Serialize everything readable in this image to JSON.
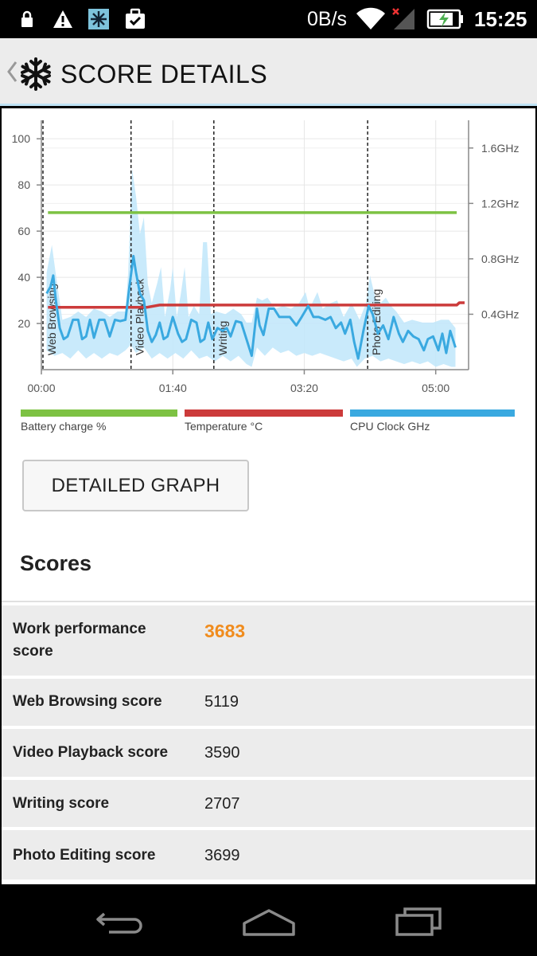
{
  "status_bar": {
    "net_speed": "0B/s",
    "time": "15:25",
    "icons": [
      "lock-icon",
      "warning-icon",
      "snowflake-app-icon",
      "briefcase-check-icon",
      "wifi-icon",
      "signal-icon",
      "battery-charging-icon"
    ]
  },
  "header": {
    "title": "SCORE DETAILS",
    "icons": [
      "back-chevron-icon",
      "snowflake-logo-icon"
    ]
  },
  "chart_data": {
    "type": "line",
    "x_ticks": [
      "00:00",
      "01:40",
      "03:20",
      "05:00"
    ],
    "x_range_seconds": [
      0,
      325
    ],
    "y_left_ticks": [
      20,
      40,
      60,
      80,
      100
    ],
    "y_left_range": [
      0,
      108
    ],
    "y_right_ticks": [
      "0.4GHz",
      "0.8GHz",
      "1.2GHz",
      "1.6GHz"
    ],
    "y_right_range_ghz": [
      0,
      1.8
    ],
    "grid": true,
    "section_markers": [
      {
        "label": "Web Browsing",
        "t": 0
      },
      {
        "label": "Video Playback",
        "t": 67
      },
      {
        "label": "Writing",
        "t": 130
      },
      {
        "label": "Photo Editing",
        "t": 247
      }
    ],
    "series": [
      {
        "name": "Battery charge %",
        "color": "#7dc243",
        "axis": "left",
        "points": [
          [
            5,
            68
          ],
          [
            316,
            68
          ]
        ]
      },
      {
        "name": "Temperature °C",
        "color": "#cc3b3b",
        "axis": "left",
        "points": [
          [
            5,
            27
          ],
          [
            80,
            27
          ],
          [
            90,
            28
          ],
          [
            316,
            28
          ],
          [
            318,
            29
          ],
          [
            322,
            29
          ]
        ]
      },
      {
        "name": "CPU Clock GHz",
        "color": "#3aa9e0",
        "axis": "right",
        "points": [
          [
            4,
            0.55
          ],
          [
            7,
            0.6
          ],
          [
            9,
            0.68
          ],
          [
            11,
            0.5
          ],
          [
            14,
            0.3
          ],
          [
            17,
            0.22
          ],
          [
            20,
            0.24
          ],
          [
            24,
            0.36
          ],
          [
            28,
            0.36
          ],
          [
            31,
            0.22
          ],
          [
            34,
            0.24
          ],
          [
            37,
            0.36
          ],
          [
            40,
            0.23
          ],
          [
            44,
            0.36
          ],
          [
            48,
            0.36
          ],
          [
            52,
            0.24
          ],
          [
            56,
            0.36
          ],
          [
            60,
            0.35
          ],
          [
            64,
            0.36
          ],
          [
            67,
            0.6
          ],
          [
            70,
            0.82
          ],
          [
            72,
            0.7
          ],
          [
            75,
            0.55
          ],
          [
            78,
            0.5
          ],
          [
            81,
            0.28
          ],
          [
            84,
            0.2
          ],
          [
            87,
            0.25
          ],
          [
            90,
            0.34
          ],
          [
            93,
            0.22
          ],
          [
            96,
            0.24
          ],
          [
            100,
            0.38
          ],
          [
            104,
            0.26
          ],
          [
            107,
            0.2
          ],
          [
            110,
            0.22
          ],
          [
            114,
            0.36
          ],
          [
            118,
            0.34
          ],
          [
            121,
            0.2
          ],
          [
            124,
            0.22
          ],
          [
            127,
            0.34
          ],
          [
            130,
            0.22
          ],
          [
            134,
            0.3
          ],
          [
            138,
            0.28
          ],
          [
            141,
            0.3
          ],
          [
            144,
            0.24
          ],
          [
            148,
            0.35
          ],
          [
            152,
            0.34
          ],
          [
            156,
            0.22
          ],
          [
            160,
            0.1
          ],
          [
            164,
            0.44
          ],
          [
            166,
            0.32
          ],
          [
            169,
            0.25
          ],
          [
            173,
            0.44
          ],
          [
            177,
            0.44
          ],
          [
            181,
            0.38
          ],
          [
            185,
            0.38
          ],
          [
            189,
            0.38
          ],
          [
            194,
            0.32
          ],
          [
            198,
            0.38
          ],
          [
            203,
            0.46
          ],
          [
            207,
            0.38
          ],
          [
            211,
            0.38
          ],
          [
            216,
            0.36
          ],
          [
            220,
            0.38
          ],
          [
            224,
            0.3
          ],
          [
            228,
            0.34
          ],
          [
            231,
            0.26
          ],
          [
            235,
            0.36
          ],
          [
            238,
            0.2
          ],
          [
            241,
            0.08
          ],
          [
            245,
            0.28
          ],
          [
            249,
            0.46
          ],
          [
            252,
            0.4
          ],
          [
            256,
            0.26
          ],
          [
            260,
            0.32
          ],
          [
            264,
            0.22
          ],
          [
            268,
            0.38
          ],
          [
            272,
            0.26
          ],
          [
            275,
            0.2
          ],
          [
            279,
            0.28
          ],
          [
            283,
            0.24
          ],
          [
            287,
            0.22
          ],
          [
            291,
            0.14
          ],
          [
            294,
            0.22
          ],
          [
            298,
            0.24
          ],
          [
            302,
            0.14
          ],
          [
            305,
            0.26
          ],
          [
            308,
            0.12
          ],
          [
            311,
            0.28
          ],
          [
            315,
            0.16
          ]
        ],
        "band_upper": [
          [
            4,
            0.7
          ],
          [
            8,
            0.9
          ],
          [
            12,
            0.62
          ],
          [
            16,
            0.36
          ],
          [
            22,
            0.38
          ],
          [
            28,
            0.42
          ],
          [
            34,
            0.38
          ],
          [
            40,
            0.44
          ],
          [
            46,
            0.42
          ],
          [
            52,
            0.38
          ],
          [
            58,
            0.42
          ],
          [
            64,
            0.42
          ],
          [
            66,
            0.7
          ],
          [
            69,
            1.45
          ],
          [
            72,
            1.25
          ],
          [
            75,
            0.98
          ],
          [
            78,
            1.1
          ],
          [
            81,
            0.62
          ],
          [
            84,
            0.48
          ],
          [
            88,
            0.62
          ],
          [
            91,
            0.74
          ],
          [
            94,
            0.38
          ],
          [
            98,
            0.58
          ],
          [
            100,
            0.74
          ],
          [
            103,
            0.38
          ],
          [
            106,
            0.54
          ],
          [
            109,
            0.74
          ],
          [
            112,
            0.38
          ],
          [
            116,
            0.46
          ],
          [
            120,
            0.4
          ],
          [
            123,
            0.92
          ],
          [
            126,
            0.92
          ],
          [
            129,
            0.4
          ],
          [
            133,
            0.42
          ],
          [
            140,
            0.4
          ],
          [
            146,
            0.44
          ],
          [
            152,
            0.4
          ],
          [
            156,
            0.34
          ],
          [
            160,
            0.34
          ],
          [
            164,
            0.52
          ],
          [
            168,
            0.5
          ],
          [
            172,
            0.52
          ],
          [
            178,
            0.44
          ],
          [
            184,
            0.46
          ],
          [
            190,
            0.44
          ],
          [
            196,
            0.48
          ],
          [
            201,
            0.56
          ],
          [
            204,
            0.44
          ],
          [
            210,
            0.56
          ],
          [
            214,
            0.44
          ],
          [
            220,
            0.48
          ],
          [
            225,
            0.5
          ],
          [
            230,
            0.38
          ],
          [
            236,
            0.48
          ],
          [
            242,
            0.36
          ],
          [
            247,
            0.48
          ],
          [
            250,
            0.68
          ],
          [
            254,
            0.52
          ],
          [
            258,
            0.48
          ],
          [
            262,
            0.52
          ],
          [
            266,
            0.46
          ],
          [
            270,
            0.42
          ],
          [
            276,
            0.34
          ],
          [
            282,
            0.36
          ],
          [
            290,
            0.34
          ],
          [
            298,
            0.34
          ],
          [
            304,
            0.36
          ],
          [
            310,
            0.36
          ],
          [
            315,
            0.3
          ]
        ],
        "band_lower": [
          [
            4,
            0.14
          ],
          [
            10,
            0.1
          ],
          [
            16,
            0.12
          ],
          [
            22,
            0.08
          ],
          [
            28,
            0.14
          ],
          [
            34,
            0.08
          ],
          [
            40,
            0.12
          ],
          [
            46,
            0.08
          ],
          [
            52,
            0.12
          ],
          [
            58,
            0.1
          ],
          [
            64,
            0.14
          ],
          [
            68,
            0.18
          ],
          [
            72,
            0.12
          ],
          [
            78,
            0.16
          ],
          [
            84,
            0.08
          ],
          [
            90,
            0.12
          ],
          [
            96,
            0.08
          ],
          [
            102,
            0.12
          ],
          [
            108,
            0.08
          ],
          [
            114,
            0.14
          ],
          [
            120,
            0.08
          ],
          [
            126,
            0.1
          ],
          [
            132,
            0.06
          ],
          [
            138,
            0.1
          ],
          [
            144,
            0.06
          ],
          [
            150,
            0.1
          ],
          [
            156,
            0.04
          ],
          [
            160,
            0.02
          ],
          [
            164,
            0.16
          ],
          [
            170,
            0.1
          ],
          [
            176,
            0.16
          ],
          [
            182,
            0.12
          ],
          [
            188,
            0.14
          ],
          [
            194,
            0.1
          ],
          [
            200,
            0.12
          ],
          [
            206,
            0.1
          ],
          [
            212,
            0.12
          ],
          [
            218,
            0.1
          ],
          [
            224,
            0.08
          ],
          [
            230,
            0.06
          ],
          [
            236,
            0.08
          ],
          [
            240,
            0.02
          ],
          [
            246,
            0.08
          ],
          [
            252,
            0.1
          ],
          [
            258,
            0.06
          ],
          [
            264,
            0.08
          ],
          [
            270,
            0.06
          ],
          [
            276,
            0.04
          ],
          [
            282,
            0.06
          ],
          [
            288,
            0.04
          ],
          [
            294,
            0.06
          ],
          [
            300,
            0.02
          ],
          [
            306,
            0.04
          ],
          [
            312,
            0.02
          ],
          [
            315,
            0.02
          ]
        ]
      }
    ]
  },
  "legend": [
    {
      "label": "Battery charge %",
      "color": "#7dc243"
    },
    {
      "label": "Temperature °C",
      "color": "#cc3b3b"
    },
    {
      "label": "CPU Clock GHz",
      "color": "#3aa9e0"
    }
  ],
  "detailed_graph_button": "DETAILED GRAPH",
  "scores": {
    "title": "Scores",
    "rows": [
      {
        "label_line1": "Work performance",
        "label_line2": "score",
        "value": "3683",
        "highlight": true
      },
      {
        "label_line1": "Web Browsing score",
        "value": "5119"
      },
      {
        "label_line1": "Video Playback score",
        "value": "3590"
      },
      {
        "label_line1": "Writing score",
        "value": "2707"
      },
      {
        "label_line1": "Photo Editing score",
        "value": "3699"
      }
    ]
  },
  "nav_bar": {
    "icons": [
      "back-nav-icon",
      "home-nav-icon",
      "recent-apps-icon"
    ]
  }
}
